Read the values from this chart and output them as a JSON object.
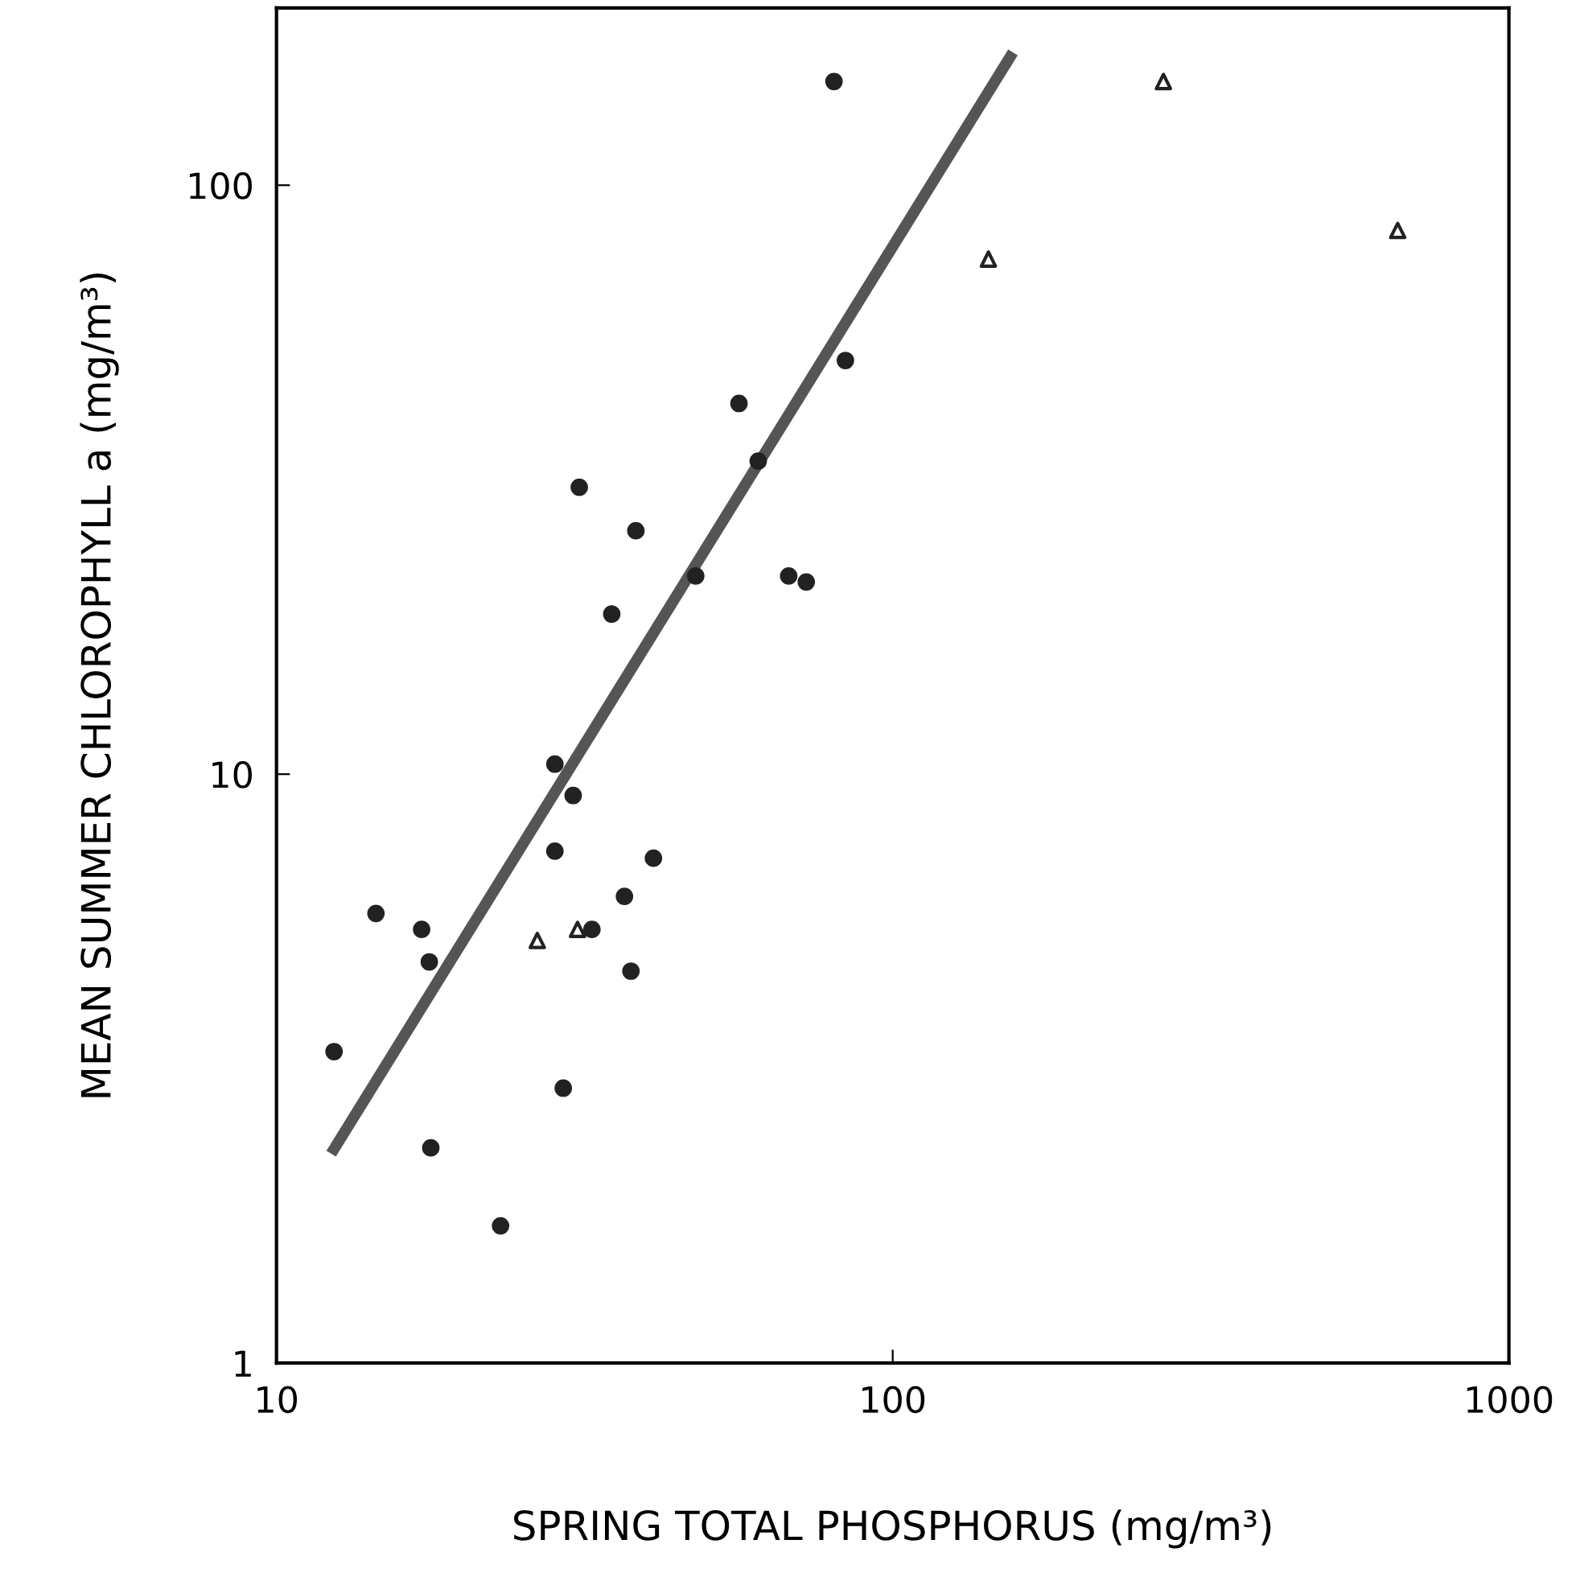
{
  "chart_data": {
    "type": "scatter",
    "xlabel": "SPRING TOTAL PHOSPHORUS (mg/m³)",
    "ylabel": "MEAN SUMMER CHLOROPHYLL a (mg/m³)",
    "log": "xy",
    "xlim": [
      10,
      1000
    ],
    "ylim": [
      1,
      200
    ],
    "xticks": [
      10,
      100,
      1000
    ],
    "yticks": [
      1,
      10,
      100
    ],
    "grid": false,
    "legend": false,
    "series": [
      {
        "marker": "circle",
        "color": "#222222",
        "x": [
          12.4,
          14.5,
          17.2,
          17.7,
          17.8,
          23.1,
          28.3,
          28.3,
          29.2,
          30.3,
          31.0,
          32.5,
          35.0,
          36.7,
          37.6,
          38.3,
          40.9,
          47.9,
          56.3,
          60.5,
          67.8,
          72.4,
          80.3,
          83.8
        ],
        "values": [
          3.38,
          5.8,
          5.45,
          4.8,
          2.32,
          1.71,
          10.4,
          7.4,
          2.93,
          9.2,
          30.7,
          5.45,
          18.7,
          6.2,
          4.63,
          25.9,
          7.2,
          21.7,
          42.6,
          34.0,
          21.7,
          21.2,
          150,
          50.4
        ]
      },
      {
        "marker": "triangle",
        "color": "#222222",
        "x": [
          26.5,
          30.8,
          143,
          275,
          660
        ],
        "values": [
          5.22,
          5.45,
          74.9,
          150,
          83.8
        ]
      },
      {
        "type": "line",
        "marker": "none",
        "line_style": "solid",
        "color": "#555555",
        "x": [
          12.4,
          155
        ],
        "values": [
          2.31,
          165
        ]
      }
    ]
  }
}
